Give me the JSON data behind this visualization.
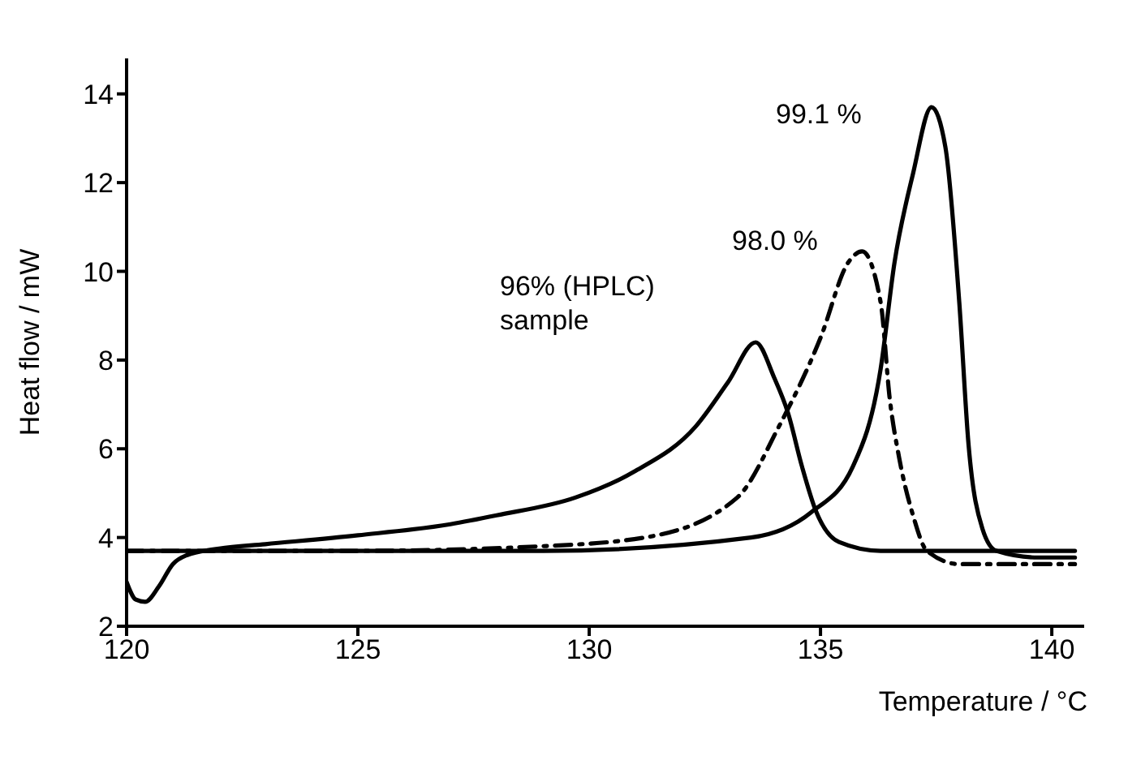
{
  "chart_data": {
    "type": "line",
    "xlabel": "Temperature / °C",
    "ylabel": "Heat flow / mW",
    "xlim": [
      120,
      140.7
    ],
    "xticks": [
      120,
      125,
      130,
      135,
      140
    ],
    "ylim": [
      2,
      14.8
    ],
    "yticks": [
      2,
      4,
      6,
      8,
      10,
      12,
      14
    ],
    "grid": false,
    "marker": "none",
    "series": [
      {
        "color": "#000000",
        "line_style": "solid",
        "x": [
          120,
          120.2,
          120.4,
          120.7,
          121,
          121.3,
          122,
          123,
          125,
          127,
          128,
          129.7,
          131,
          132.3,
          133,
          133.6,
          134,
          134.3,
          134.6,
          134.9,
          135.4,
          136.3,
          138,
          140.5
        ],
        "values": [
          3.0,
          2.6,
          2.55,
          2.9,
          3.4,
          3.6,
          3.75,
          3.85,
          4.05,
          4.3,
          4.5,
          4.9,
          5.5,
          6.5,
          7.5,
          8.4,
          7.6,
          6.8,
          5.6,
          4.6,
          3.9,
          3.7,
          3.7,
          3.7
        ]
      },
      {
        "color": "#000000",
        "line_style": "dashed",
        "x": [
          120,
          125,
          128.9,
          131.2,
          133.2,
          134.1,
          135,
          135.6,
          135.9,
          136.3,
          136.5,
          136.7,
          137,
          137.3,
          138,
          140.5
        ],
        "values": [
          3.7,
          3.7,
          3.8,
          4.0,
          4.9,
          6.5,
          8.5,
          10.2,
          10.45,
          9.3,
          7.1,
          5.8,
          4.5,
          3.7,
          3.4,
          3.4
        ]
      },
      {
        "color": "#000000",
        "line_style": "solid",
        "x": [
          120,
          125,
          129,
          133.5,
          134.8,
          135.7,
          136.3,
          136.6,
          137,
          137.4,
          137.7,
          138,
          138.2,
          138.5,
          138.8,
          139.7,
          140.5
        ],
        "values": [
          3.7,
          3.7,
          3.7,
          4.0,
          4.57,
          5.6,
          7.8,
          10.2,
          12.2,
          13.7,
          12.8,
          9.3,
          6.1,
          4.2,
          3.7,
          3.55,
          3.55
        ]
      }
    ],
    "annotations": [
      "99.1 %",
      "98.0 %",
      "96% (HPLC)\nsample"
    ]
  }
}
